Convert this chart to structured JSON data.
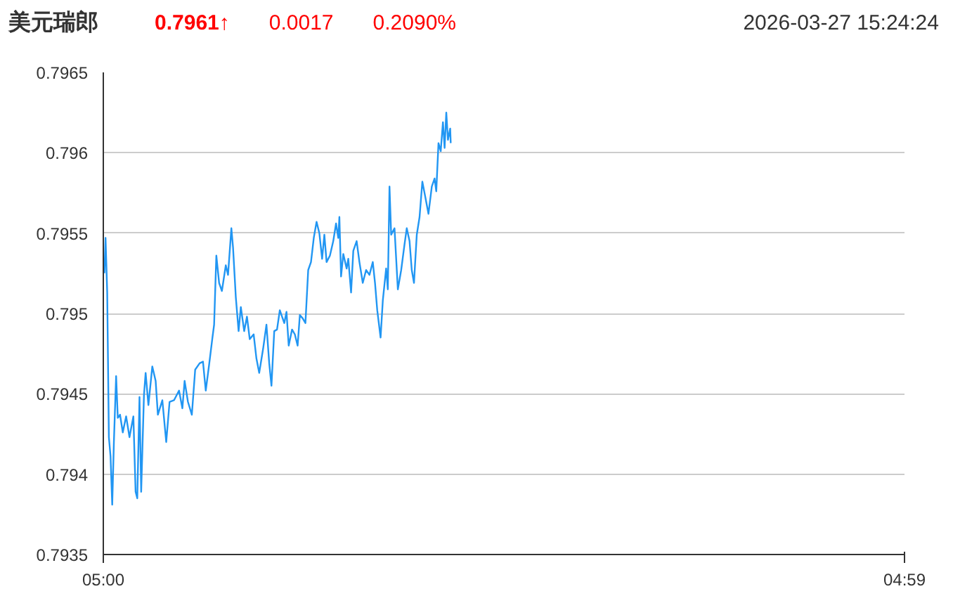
{
  "chart_data": {
    "type": "line",
    "title": "美元瑞郎",
    "annotations": [
      "0.7961↑",
      "0.0017",
      "0.2090%",
      "2026-03-27 15:24:24"
    ],
    "xlim": [
      "2026-03-27T05:00",
      "2026-03-28T04:59"
    ],
    "xticks": [
      {
        "value": "2026-03-27T05:00",
        "label": "05:00"
      },
      {
        "value": "2026-03-28T04:59",
        "label": "04:59"
      }
    ],
    "ylim": [
      0.7935,
      0.7965
    ],
    "yticks": [
      0.7935,
      0.794,
      0.7945,
      0.795,
      0.7955,
      0.796,
      0.7965
    ],
    "grid": "y",
    "series": [
      {
        "color": "#2196f3",
        "x": [
          "2026-03-27T05:02",
          "2026-03-27T05:04",
          "2026-03-27T05:07",
          "2026-03-27T05:10",
          "2026-03-27T05:13",
          "2026-03-27T05:16",
          "2026-03-27T05:19",
          "2026-03-27T05:23",
          "2026-03-27T05:26",
          "2026-03-27T05:30",
          "2026-03-27T05:35",
          "2026-03-27T05:41",
          "2026-03-27T05:47",
          "2026-03-27T05:54",
          "2026-03-27T05:58",
          "2026-03-27T06:01",
          "2026-03-27T06:05",
          "2026-03-27T06:08",
          "2026-03-27T06:13",
          "2026-03-27T06:16",
          "2026-03-27T06:21",
          "2026-03-27T06:28",
          "2026-03-27T06:34",
          "2026-03-27T06:38",
          "2026-03-27T06:46",
          "2026-03-27T06:53",
          "2026-03-27T06:59",
          "2026-03-27T07:07",
          "2026-03-27T07:16",
          "2026-03-27T07:22",
          "2026-03-27T07:26",
          "2026-03-27T07:32",
          "2026-03-27T07:39",
          "2026-03-27T07:45",
          "2026-03-27T07:53",
          "2026-03-27T07:59",
          "2026-03-27T08:04",
          "2026-03-27T08:10",
          "2026-03-27T08:16",
          "2026-03-27T08:19",
          "2026-03-27T08:23",
          "2026-03-27T08:28",
          "2026-03-27T08:33",
          "2026-03-27T08:40",
          "2026-03-27T08:44",
          "2026-03-27T08:50",
          "2026-03-27T08:53",
          "2026-03-27T08:58",
          "2026-03-27T09:03",
          "2026-03-27T09:07",
          "2026-03-27T09:13",
          "2026-03-27T09:18",
          "2026-03-27T09:23",
          "2026-03-27T09:30",
          "2026-03-27T09:35",
          "2026-03-27T09:40",
          "2026-03-27T09:47",
          "2026-03-27T09:53",
          "2026-03-27T09:58",
          "2026-03-27T10:02",
          "2026-03-27T10:07",
          "2026-03-27T10:12",
          "2026-03-27T10:17",
          "2026-03-27T10:25",
          "2026-03-27T10:29",
          "2026-03-27T10:33",
          "2026-03-27T10:39",
          "2026-03-27T10:44",
          "2026-03-27T10:49",
          "2026-03-27T10:53",
          "2026-03-27T10:58",
          "2026-03-27T11:03",
          "2026-03-27T11:08",
          "2026-03-27T11:13",
          "2026-03-27T11:18",
          "2026-03-27T11:23",
          "2026-03-27T11:28",
          "2026-03-27T11:33",
          "2026-03-27T11:37",
          "2026-03-27T11:41",
          "2026-03-27T11:47",
          "2026-03-27T11:53",
          "2026-03-27T11:58",
          "2026-03-27T12:02",
          "2026-03-27T12:04",
          "2026-03-27T12:07",
          "2026-03-27T12:11",
          "2026-03-27T12:17",
          "2026-03-27T12:20",
          "2026-03-27T12:25",
          "2026-03-27T12:29",
          "2026-03-27T12:35",
          "2026-03-27T12:40",
          "2026-03-27T12:46",
          "2026-03-27T12:52",
          "2026-03-27T12:58",
          "2026-03-27T13:04",
          "2026-03-27T13:08",
          "2026-03-27T13:12",
          "2026-03-27T13:18",
          "2026-03-27T13:22",
          "2026-03-27T13:28",
          "2026-03-27T13:31",
          "2026-03-27T13:34",
          "2026-03-27T13:37",
          "2026-03-27T13:43",
          "2026-03-27T13:49",
          "2026-03-27T13:55",
          "2026-03-27T14:01",
          "2026-03-27T14:05",
          "2026-03-27T14:10",
          "2026-03-27T14:14",
          "2026-03-27T14:18",
          "2026-03-27T14:23",
          "2026-03-27T14:28",
          "2026-03-27T14:33",
          "2026-03-27T14:38",
          "2026-03-27T14:44",
          "2026-03-27T14:50",
          "2026-03-27T14:55",
          "2026-03-27T14:58",
          "2026-03-27T15:02",
          "2026-03-27T15:06",
          "2026-03-27T15:10",
          "2026-03-27T15:13",
          "2026-03-27T15:16",
          "2026-03-27T15:19",
          "2026-03-27T15:23",
          "2026-03-27T15:24"
        ],
        "values": [
          0.79525,
          0.79547,
          0.79513,
          0.79423,
          0.79411,
          0.79381,
          0.7942,
          0.79461,
          0.79435,
          0.79437,
          0.79426,
          0.79436,
          0.79423,
          0.79436,
          0.79389,
          0.79385,
          0.79448,
          0.79389,
          0.79449,
          0.79463,
          0.79443,
          0.79467,
          0.79458,
          0.79437,
          0.79446,
          0.7942,
          0.79445,
          0.79446,
          0.79452,
          0.79441,
          0.79458,
          0.79445,
          0.79437,
          0.79465,
          0.79469,
          0.7947,
          0.79452,
          0.79468,
          0.79485,
          0.79493,
          0.79536,
          0.79519,
          0.79514,
          0.7953,
          0.79524,
          0.79553,
          0.79541,
          0.7951,
          0.79489,
          0.79504,
          0.79489,
          0.79498,
          0.79484,
          0.79487,
          0.79472,
          0.79463,
          0.79478,
          0.79493,
          0.79469,
          0.79455,
          0.79489,
          0.7949,
          0.79502,
          0.79494,
          0.79501,
          0.7948,
          0.7949,
          0.79487,
          0.7948,
          0.79499,
          0.79497,
          0.79494,
          0.79527,
          0.79532,
          0.79547,
          0.79557,
          0.7955,
          0.79534,
          0.79549,
          0.79532,
          0.79536,
          0.79545,
          0.79556,
          0.79547,
          0.7956,
          0.79523,
          0.79537,
          0.79528,
          0.79534,
          0.79513,
          0.79539,
          0.79545,
          0.79532,
          0.79519,
          0.79527,
          0.79524,
          0.79532,
          0.79519,
          0.79502,
          0.79485,
          0.79508,
          0.79528,
          0.79515,
          0.79579,
          0.79549,
          0.79553,
          0.79515,
          0.79527,
          0.79543,
          0.79553,
          0.79545,
          0.79527,
          0.79519,
          0.79549,
          0.7956,
          0.79582,
          0.79573,
          0.79562,
          0.79579,
          0.79584,
          0.79576,
          0.79606,
          0.79601,
          0.79619,
          0.79603,
          0.79625,
          0.79608,
          0.79615,
          0.79606
        ]
      }
    ]
  }
}
